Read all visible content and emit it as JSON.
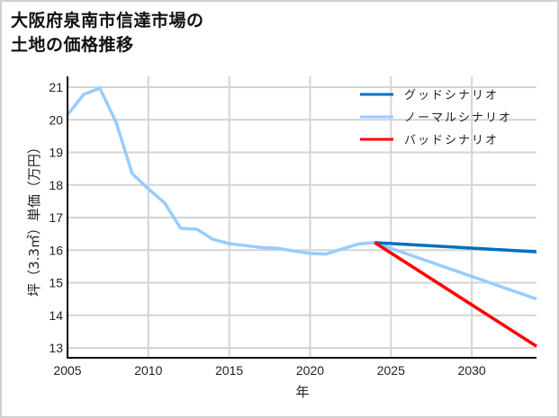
{
  "title_lines": [
    "大阪府泉南市信達市場の",
    "土地の価格推移"
  ],
  "chart_data": {
    "type": "line",
    "title": "大阪府泉南市信達市場の土地の価格推移",
    "xlabel": "年",
    "ylabel": "坪（3.3㎡）単価（万円）",
    "xlim": [
      2005,
      2034
    ],
    "ylim": [
      12.7,
      21.4
    ],
    "xticks": [
      2005,
      2010,
      2015,
      2020,
      2025,
      2030
    ],
    "yticks": [
      13,
      14,
      15,
      16,
      17,
      18,
      19,
      20,
      21
    ],
    "grid": true,
    "legend_position": "upper right",
    "series": [
      {
        "name": "グッドシナリオ",
        "color": "#0070c0",
        "x": [
          2024,
          2034
        ],
        "values": [
          16.23,
          15.95
        ]
      },
      {
        "name": "ノーマルシナリオ",
        "color": "#99ccff",
        "x": [
          2005,
          2006,
          2007,
          2008,
          2009,
          2010,
          2011,
          2012,
          2013,
          2014,
          2015,
          2016,
          2017,
          2018,
          2019,
          2020,
          2021,
          2022,
          2023,
          2024,
          2034
        ],
        "values": [
          20.15,
          20.78,
          20.97,
          19.93,
          18.35,
          17.88,
          17.45,
          16.67,
          16.64,
          16.33,
          16.2,
          16.14,
          16.08,
          16.06,
          15.97,
          15.9,
          15.88,
          16.04,
          16.19,
          16.23,
          14.5
        ]
      },
      {
        "name": "バッドシナリオ",
        "color": "#ff0000",
        "x": [
          2024,
          2034
        ],
        "values": [
          16.23,
          13.05
        ]
      }
    ]
  }
}
